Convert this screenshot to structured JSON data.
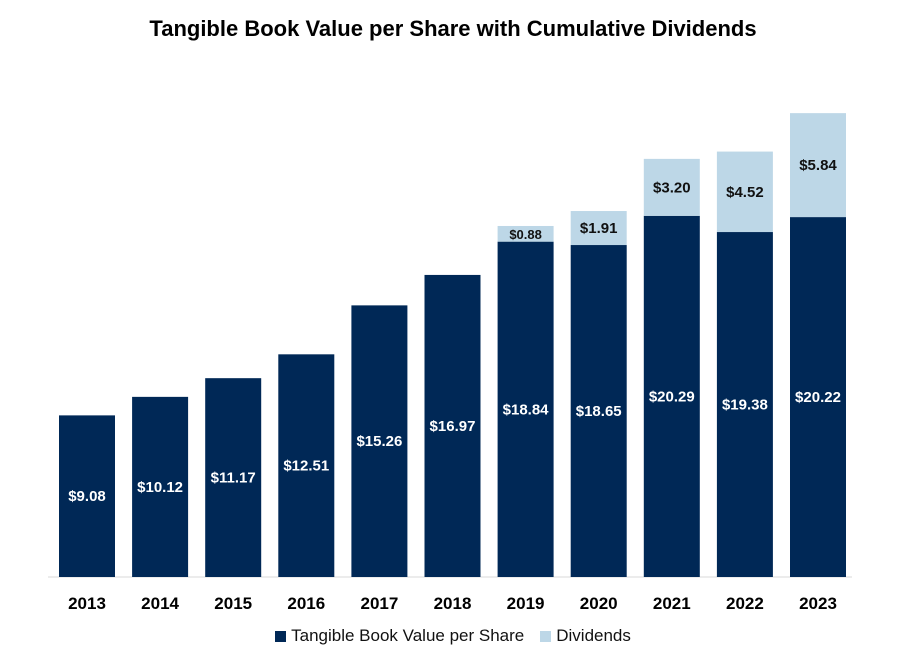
{
  "chart_data": {
    "type": "bar",
    "stacked": true,
    "title": "Tangible Book Value per Share with Cumulative Dividends",
    "categories": [
      "2013",
      "2014",
      "2015",
      "2016",
      "2017",
      "2018",
      "2019",
      "2020",
      "2021",
      "2022",
      "2023"
    ],
    "series": [
      {
        "name": "Tangible Book Value per Share",
        "color": "#002856",
        "values": [
          9.08,
          10.12,
          11.17,
          12.51,
          15.26,
          16.97,
          18.84,
          18.65,
          20.29,
          19.38,
          20.22
        ],
        "labels": [
          "$9.08",
          "$10.12",
          "$11.17",
          "$12.51",
          "$15.26",
          "$16.97",
          "$18.84",
          "$18.65",
          "$20.29",
          "$19.38",
          "$20.22"
        ]
      },
      {
        "name": "Dividends",
        "color": "#bdd7e7",
        "values": [
          0,
          0,
          0,
          0,
          0,
          0,
          0.88,
          1.91,
          3.2,
          4.52,
          5.84
        ],
        "labels": [
          "",
          "",
          "",
          "",
          "",
          "",
          "$0.88",
          "$1.91",
          "$3.20",
          "$4.52",
          "$5.84"
        ]
      }
    ],
    "legend_position": "bottom",
    "grid": false,
    "ylim": [
      0,
      27
    ]
  }
}
